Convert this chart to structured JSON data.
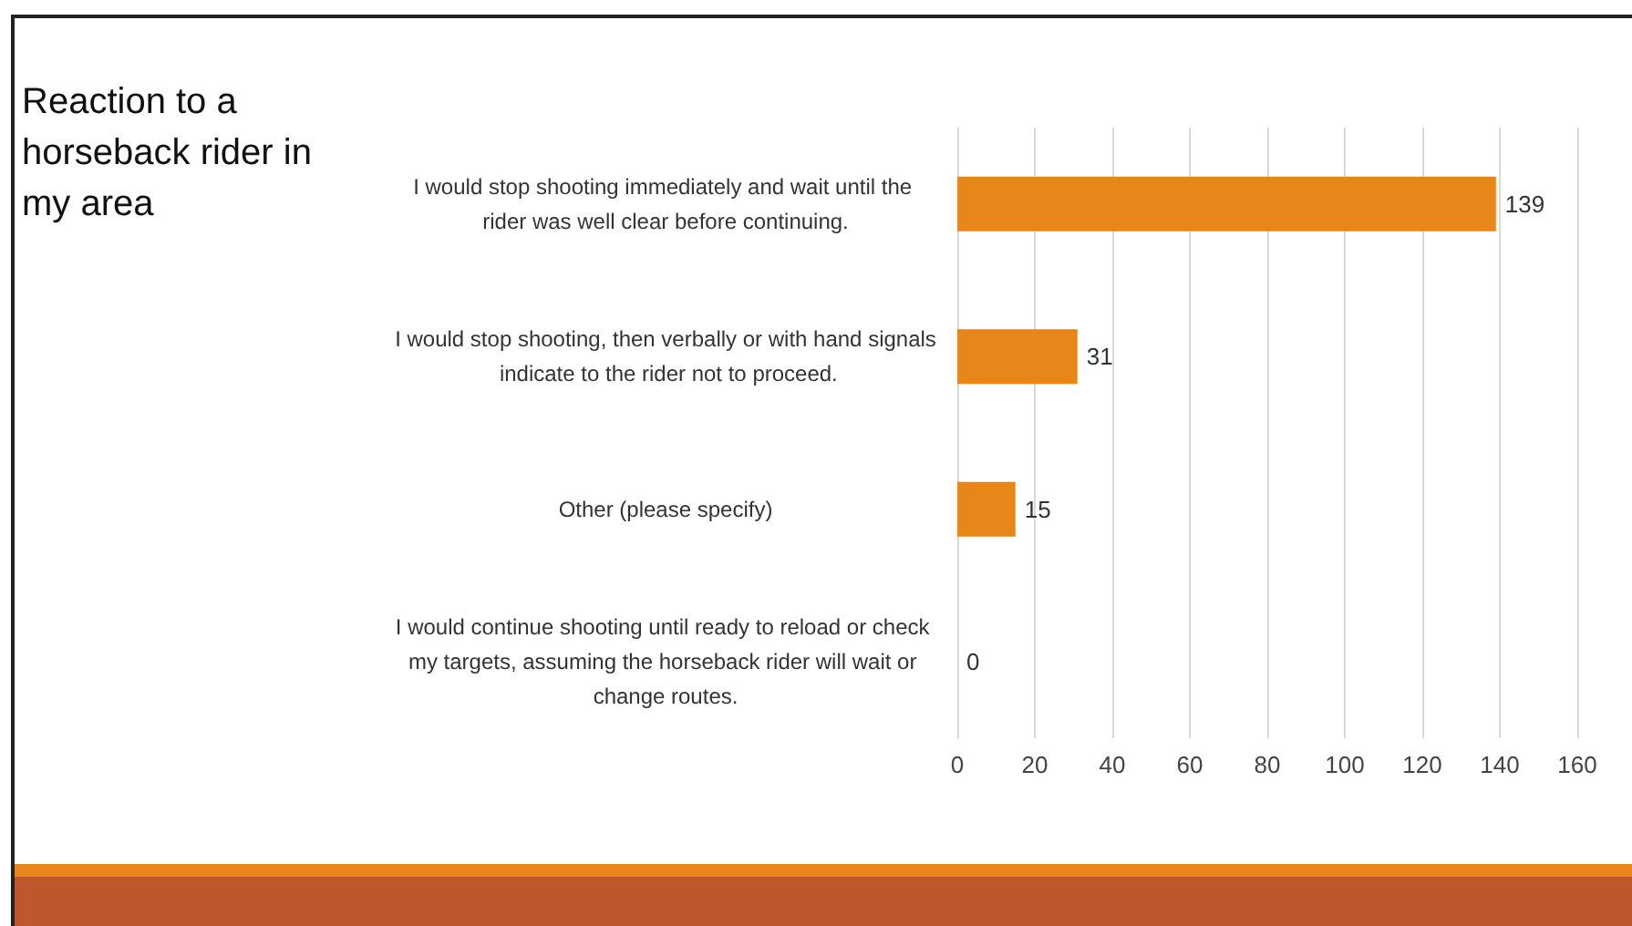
{
  "chart_data": {
    "type": "bar",
    "orientation": "horizontal",
    "title": "Reaction to a horseback rider in my area",
    "categories": [
      "I would stop shooting immediately and wait until the rider was well clear before continuing.",
      "I would stop shooting, then verbally or with hand signals indicate to the rider not to proceed.",
      "Other (please specify)",
      "I would continue shooting until ready to reload or check my targets, assuming the horseback rider will wait or change routes."
    ],
    "values": [
      139,
      31,
      15,
      0
    ],
    "color": "#e8861a",
    "xlim": [
      0,
      160
    ],
    "xticks": [
      0,
      20,
      40,
      60,
      80,
      100,
      120,
      140,
      160
    ],
    "grid": "x",
    "data_labels": true
  }
}
